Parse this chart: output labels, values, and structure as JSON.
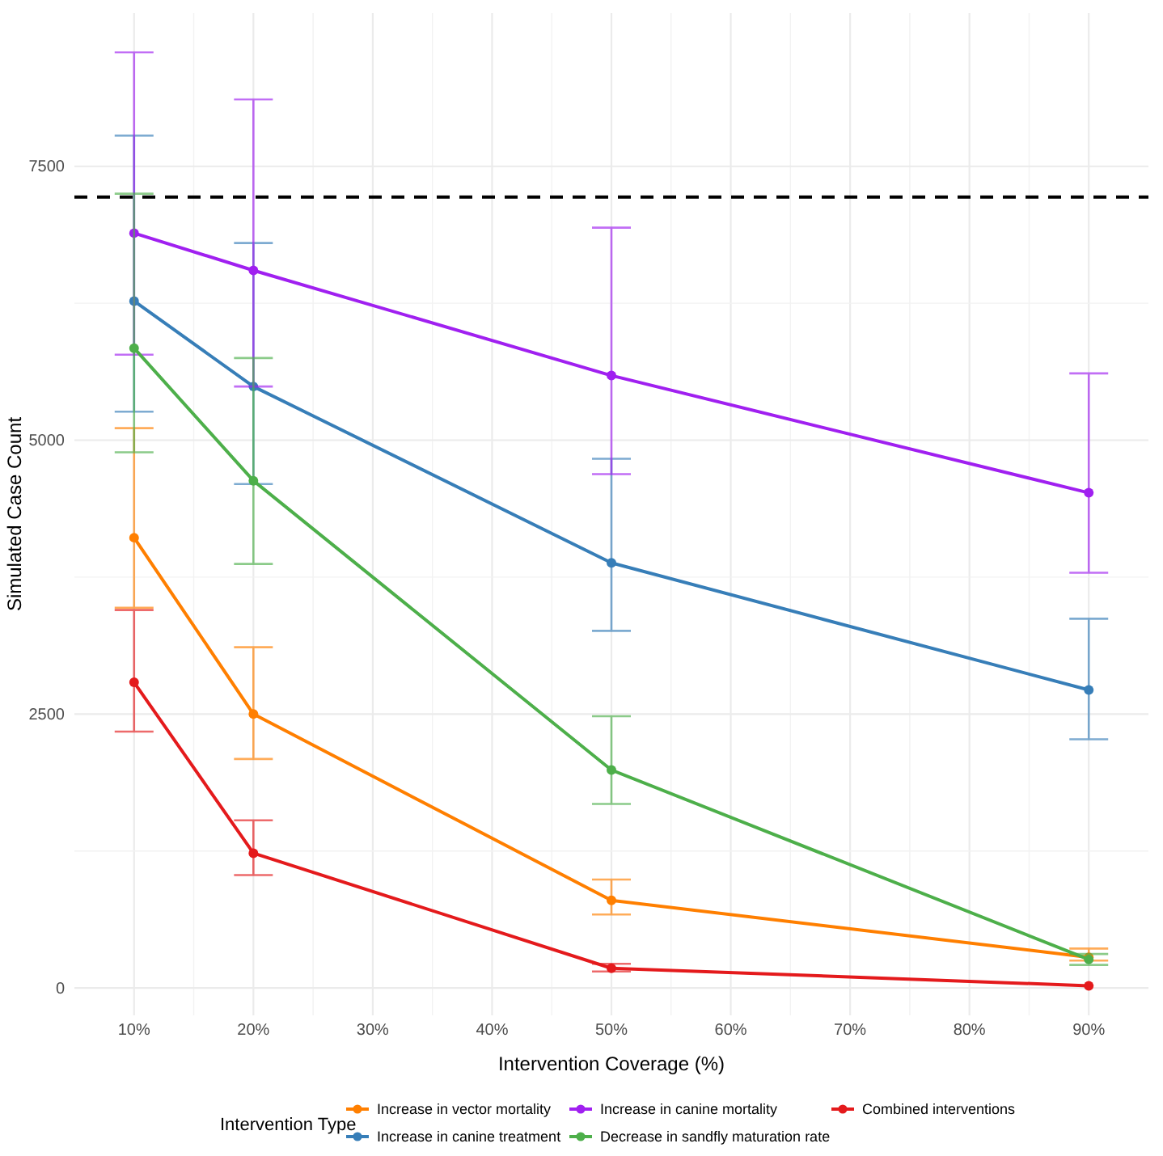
{
  "chart_data": {
    "type": "line",
    "xlabel": "Intervention Coverage (%)",
    "ylabel": "Simulated Case Count",
    "legend_title": "Intervention Type",
    "legend": "bottom",
    "grid": true,
    "marker": "circle",
    "line_style": "solid",
    "x": [
      10,
      20,
      50,
      90
    ],
    "xlim": [
      5,
      95
    ],
    "xticks": [
      {
        "value": 10,
        "label": "10%"
      },
      {
        "value": 20,
        "label": "20%"
      },
      {
        "value": 30,
        "label": "30%"
      },
      {
        "value": 40,
        "label": "40%"
      },
      {
        "value": 50,
        "label": "50%"
      },
      {
        "value": 60,
        "label": "60%"
      },
      {
        "value": 70,
        "label": "70%"
      },
      {
        "value": 80,
        "label": "80%"
      },
      {
        "value": 90,
        "label": "90%"
      }
    ],
    "ylim": [
      -250,
      8900
    ],
    "yticks": [
      0,
      2500,
      5000,
      7500
    ],
    "ref_lines": [
      {
        "axis": "y",
        "value": 7220,
        "color": "#000000",
        "line_style": "dashed"
      }
    ],
    "series": [
      {
        "name": "Increase in vector mortality",
        "color": "#ff7f00",
        "values": [
          4110,
          2500,
          800,
          280
        ],
        "errors": [
          [
            3470,
            5110
          ],
          [
            2090,
            3110
          ],
          [
            670,
            990
          ],
          [
            250,
            360
          ]
        ]
      },
      {
        "name": "Increase in canine treatment",
        "color": "#377eb8",
        "values": [
          6270,
          5490,
          3880,
          2720
        ],
        "errors": [
          [
            5260,
            7780
          ],
          [
            4600,
            6800
          ],
          [
            3260,
            4830
          ],
          [
            2270,
            3370
          ]
        ]
      },
      {
        "name": "Increase in canine mortality",
        "color": "#a020f0",
        "values": [
          6890,
          6550,
          5590,
          4520
        ],
        "errors": [
          [
            5780,
            8540
          ],
          [
            5490,
            8110
          ],
          [
            4690,
            6940
          ],
          [
            3790,
            5610
          ]
        ]
      },
      {
        "name": "Decrease in sandfly maturation rate",
        "color": "#4daf4a",
        "values": [
          5840,
          4630,
          1990,
          260
        ],
        "errors": [
          [
            4890,
            7250
          ],
          [
            3870,
            5750
          ],
          [
            1680,
            2480
          ],
          [
            210,
            310
          ]
        ]
      },
      {
        "name": "Combined interventions",
        "color": "#e41a1c",
        "values": [
          2790,
          1230,
          180,
          20
        ],
        "errors": [
          [
            2340,
            3450
          ],
          [
            1030,
            1530
          ],
          [
            150,
            220
          ],
          null
        ]
      }
    ]
  }
}
